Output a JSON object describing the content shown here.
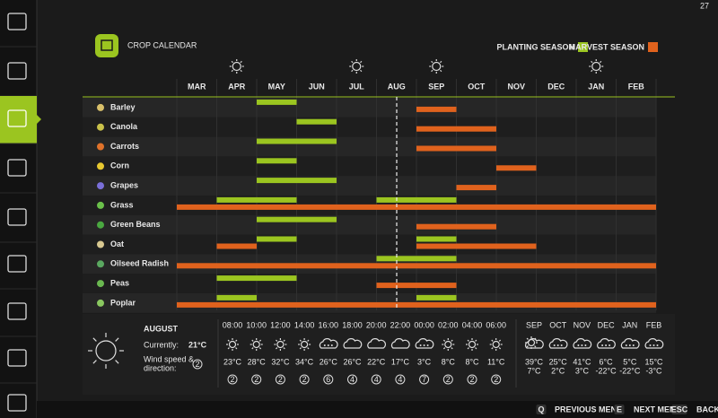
{
  "page_number": "27",
  "title": "CROP CALENDAR",
  "legend": {
    "planting": "PLANTING SEASON",
    "harvest": "HARVEST SEASON",
    "planting_color": "#9bc520",
    "harvest_color": "#e0621d"
  },
  "months": [
    "MAR",
    "APR",
    "MAY",
    "JUN",
    "JUL",
    "AUG",
    "SEP",
    "OCT",
    "NOV",
    "DEC",
    "JAN",
    "FEB"
  ],
  "crops": [
    {
      "name": "Barley",
      "planting": [
        [
          2,
          2
        ]
      ],
      "harvest": [
        [
          6,
          6
        ]
      ]
    },
    {
      "name": "Canola",
      "planting": [
        [
          3,
          3
        ]
      ],
      "harvest": [
        [
          6,
          7
        ]
      ]
    },
    {
      "name": "Carrots",
      "planting": [
        [
          2,
          3
        ]
      ],
      "harvest": [
        [
          6,
          7
        ]
      ]
    },
    {
      "name": "Corn",
      "planting": [
        [
          2,
          2
        ]
      ],
      "harvest": [
        [
          8,
          8
        ]
      ]
    },
    {
      "name": "Grapes",
      "planting": [
        [
          2,
          3
        ]
      ],
      "harvest": [
        [
          7,
          7
        ]
      ]
    },
    {
      "name": "Grass",
      "planting": [
        [
          1,
          2
        ],
        [
          5,
          6
        ]
      ],
      "harvest": [
        [
          0,
          11
        ]
      ]
    },
    {
      "name": "Green Beans",
      "planting": [
        [
          2,
          3
        ]
      ],
      "harvest": [
        [
          6,
          7
        ]
      ]
    },
    {
      "name": "Oat",
      "planting": [
        [
          2,
          2
        ],
        [
          6,
          6
        ]
      ],
      "harvest": [
        [
          1,
          1
        ],
        [
          6,
          8
        ]
      ]
    },
    {
      "name": "Oilseed Radish",
      "planting": [
        [
          5,
          6
        ]
      ],
      "harvest": [
        [
          0,
          11
        ]
      ]
    },
    {
      "name": "Peas",
      "planting": [
        [
          1,
          2
        ]
      ],
      "harvest": [
        [
          5,
          6
        ]
      ]
    },
    {
      "name": "Poplar",
      "planting": [
        [
          1,
          1
        ],
        [
          6,
          6
        ]
      ],
      "harvest": [
        [
          0,
          11
        ]
      ]
    }
  ],
  "weather": {
    "month": "AUGUST",
    "currently_label": "Currently:",
    "current_temp": "21°C",
    "wind_label": [
      "Wind speed &",
      "direction:"
    ],
    "wind": "2",
    "hourly": [
      {
        "time": "08:00",
        "temp": "23°C",
        "wind": "2"
      },
      {
        "time": "10:00",
        "temp": "28°C",
        "wind": "2"
      },
      {
        "time": "12:00",
        "temp": "32°C",
        "wind": "2"
      },
      {
        "time": "14:00",
        "temp": "34°C",
        "wind": "2"
      },
      {
        "time": "16:00",
        "temp": "26°C",
        "wind": "6"
      },
      {
        "time": "18:00",
        "temp": "26°C",
        "wind": "4"
      },
      {
        "time": "20:00",
        "temp": "22°C",
        "wind": "4"
      },
      {
        "time": "22:00",
        "temp": "17°C",
        "wind": "4"
      },
      {
        "time": "00:00",
        "temp": "3°C",
        "wind": "7"
      },
      {
        "time": "02:00",
        "temp": "8°C",
        "wind": "2"
      },
      {
        "time": "04:00",
        "temp": "8°C",
        "wind": "2"
      },
      {
        "time": "06:00",
        "temp": "11°C",
        "wind": "2"
      }
    ],
    "monthly": [
      {
        "month": "SEP",
        "high": "39°C",
        "low": "7°C"
      },
      {
        "month": "OCT",
        "high": "25°C",
        "low": "2°C"
      },
      {
        "month": "NOV",
        "high": "41°C",
        "low": "3°C"
      },
      {
        "month": "DEC",
        "high": "6°C",
        "low": "-22°C"
      },
      {
        "month": "JAN",
        "high": "5°C",
        "low": "-22°C"
      },
      {
        "month": "FEB",
        "high": "15°C",
        "low": "-3°C"
      }
    ]
  },
  "footer": [
    {
      "key": "Q",
      "label": "PREVIOUS MENU"
    },
    {
      "key": "E",
      "label": "NEXT MENU"
    },
    {
      "key": "ESC",
      "label": "BACK"
    }
  ]
}
